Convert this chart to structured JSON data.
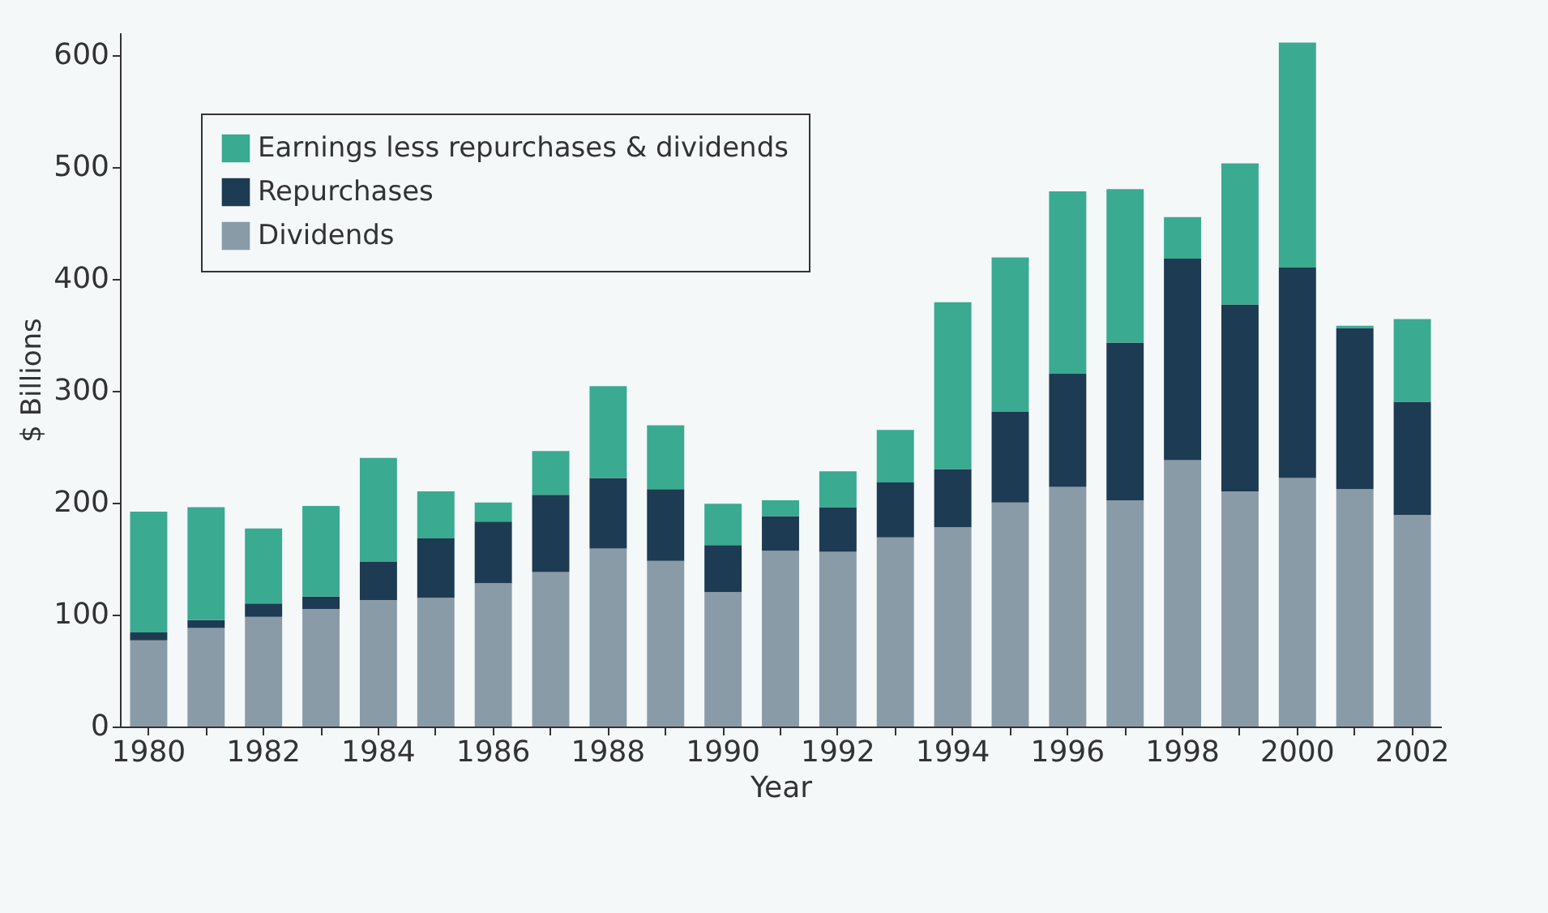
{
  "chart_data": {
    "type": "bar",
    "stacked": true,
    "xlabel": "Year",
    "ylabel": "$ Billions",
    "categories": [
      "1980",
      null,
      "1982",
      null,
      "1984",
      null,
      "1986",
      null,
      "1988",
      null,
      "1990",
      null,
      "1992",
      null,
      "1994",
      null,
      "1996",
      null,
      "1998",
      null,
      "2000",
      null,
      "2002"
    ],
    "series": [
      {
        "name": "Dividends",
        "color": "#8a9ba8",
        "values": [
          77,
          88,
          98,
          105,
          113,
          115,
          128,
          138,
          159,
          148,
          120,
          157,
          156,
          169,
          178,
          200,
          214,
          202,
          238,
          210,
          222,
          212,
          189
        ]
      },
      {
        "name": "Repurchases",
        "color": "#1d3b52",
        "values": [
          7,
          7,
          12,
          11,
          34,
          53,
          55,
          69,
          63,
          64,
          42,
          31,
          40,
          49,
          52,
          81,
          101,
          141,
          180,
          167,
          188,
          144,
          101
        ]
      },
      {
        "name": "Earnings less repurchases & dividends",
        "color": "#3aaa90",
        "values": [
          108,
          101,
          67,
          81,
          93,
          42,
          17,
          39,
          82,
          57,
          37,
          14,
          32,
          47,
          149,
          138,
          163,
          137,
          37,
          126,
          201,
          2,
          74
        ]
      }
    ],
    "ylim": [
      0,
      620
    ],
    "yticks": [
      0,
      100,
      200,
      300,
      400,
      500,
      600
    ],
    "grid": false,
    "legend": "top left"
  }
}
